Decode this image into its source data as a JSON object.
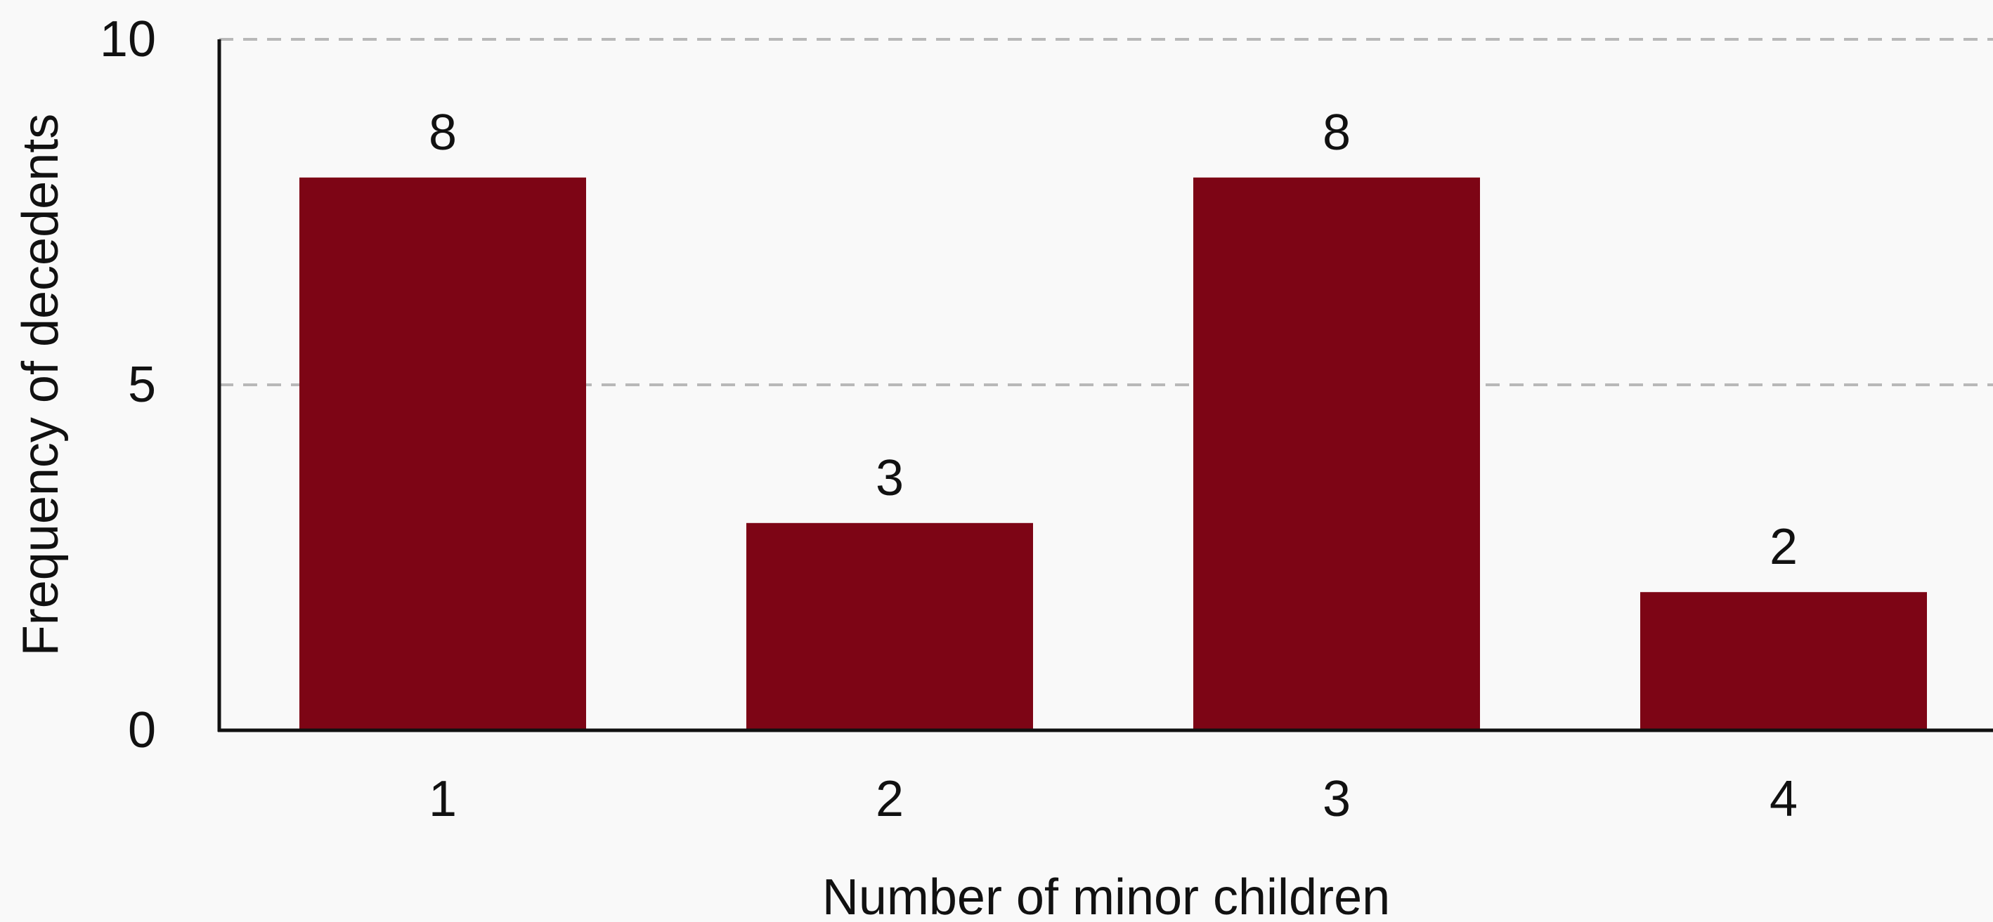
{
  "chart_data": {
    "type": "bar",
    "title": "",
    "xlabel": "Number of minor children",
    "ylabel": "Frequency of decedents",
    "categories": [
      "1",
      "2",
      "3",
      "4"
    ],
    "values": [
      8,
      3,
      8,
      2
    ],
    "data_labels": [
      "8",
      "3",
      "8",
      "2"
    ],
    "ylim": [
      0,
      10
    ],
    "yticks": [
      0,
      5,
      10
    ],
    "ytick_labels": [
      "0",
      "5",
      "10"
    ],
    "grid": "horizontal-dashed",
    "legend": "none",
    "colors": {
      "bar": "#7d0515",
      "grid": "#b8b8b8",
      "axis": "#111111",
      "background": "#f9f9f9"
    }
  }
}
